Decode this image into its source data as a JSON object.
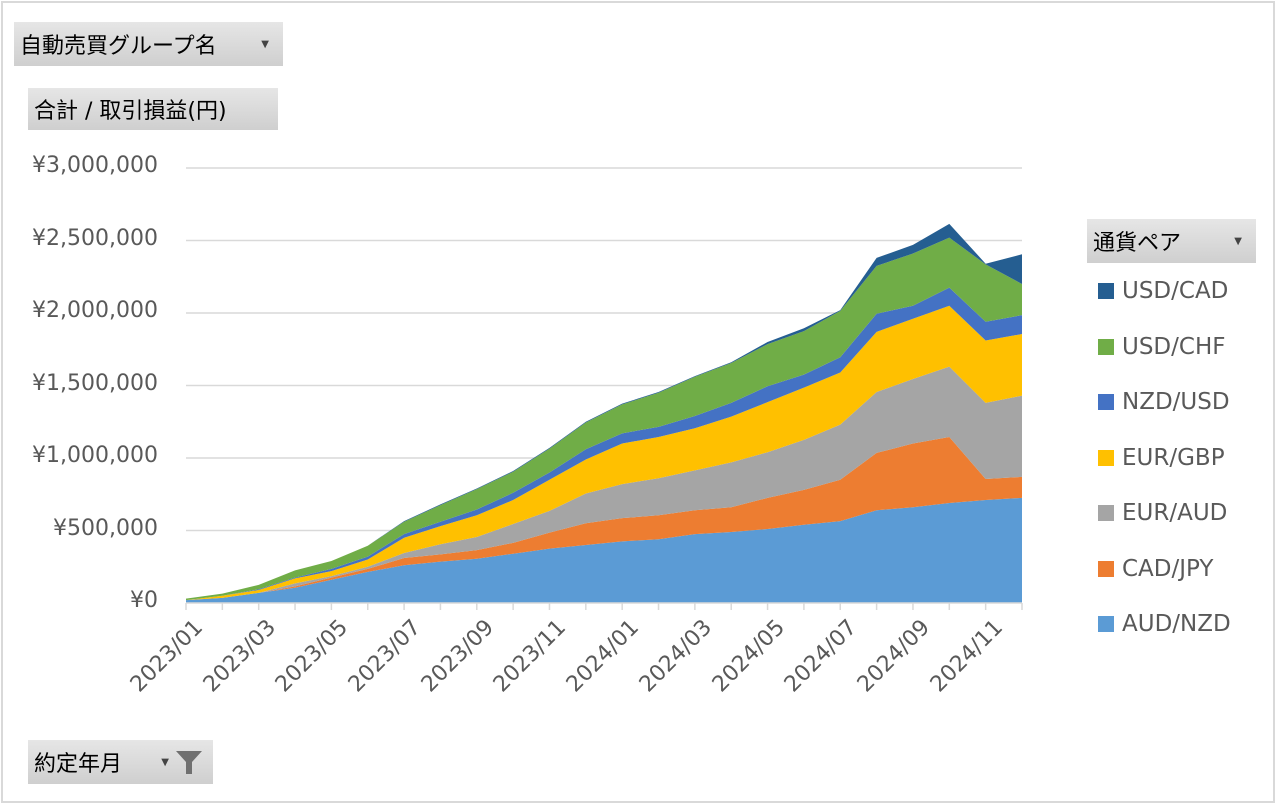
{
  "pivot": {
    "filter_group": "自動売買グループ名",
    "value_field": "合計 / 取引損益(円)",
    "axis_field": "約定年月",
    "legend_field": "通貨ペア"
  },
  "chart_data": {
    "type": "area",
    "stacked": true,
    "title": "",
    "xlabel": "",
    "ylabel": "合計 / 取引損益(円)",
    "ylim": [
      0,
      3000000
    ],
    "yticks": [
      0,
      500000,
      1000000,
      1500000,
      2000000,
      2500000,
      3000000
    ],
    "ytick_labels": [
      "¥0",
      "¥500,000",
      "¥1,000,000",
      "¥1,500,000",
      "¥2,000,000",
      "¥2,500,000",
      "¥3,000,000"
    ],
    "grid": true,
    "legend_position": "right",
    "x": [
      "2023/01",
      "2023/02",
      "2023/03",
      "2023/04",
      "2023/05",
      "2023/06",
      "2023/07",
      "2023/08",
      "2023/09",
      "2023/10",
      "2023/11",
      "2023/12",
      "2024/01",
      "2024/02",
      "2024/03",
      "2024/04",
      "2024/05",
      "2024/06",
      "2024/07",
      "2024/08",
      "2024/09",
      "2024/10",
      "2024/11",
      "2024/12"
    ],
    "xtick_labels": [
      "2023/01",
      "2023/03",
      "2023/05",
      "2023/07",
      "2023/09",
      "2023/11",
      "2024/01",
      "2024/03",
      "2024/05",
      "2024/07",
      "2024/09",
      "2024/11"
    ],
    "series": [
      {
        "name": "AUD/NZD",
        "color": "#5B9BD5",
        "values": [
          20000,
          35000,
          70000,
          105000,
          160000,
          215000,
          260000,
          285000,
          305000,
          340000,
          375000,
          400000,
          425000,
          440000,
          475000,
          490000,
          510000,
          540000,
          565000,
          640000,
          660000,
          690000,
          710000,
          725000
        ]
      },
      {
        "name": "CAD/JPY",
        "color": "#ED7D31",
        "values": [
          0,
          0,
          0,
          10000,
          15000,
          20000,
          50000,
          50000,
          60000,
          75000,
          110000,
          150000,
          160000,
          165000,
          165000,
          170000,
          215000,
          240000,
          285000,
          395000,
          440000,
          455000,
          145000,
          145000
        ]
      },
      {
        "name": "EUR/AUD",
        "color": "#A5A5A5",
        "values": [
          0,
          0,
          0,
          20000,
          10000,
          15000,
          35000,
          70000,
          90000,
          130000,
          150000,
          205000,
          235000,
          255000,
          275000,
          310000,
          315000,
          345000,
          380000,
          420000,
          445000,
          485000,
          525000,
          560000
        ]
      },
      {
        "name": "EUR/GBP",
        "color": "#FFC000",
        "values": [
          0,
          15000,
          20000,
          35000,
          35000,
          50000,
          105000,
          125000,
          150000,
          165000,
          215000,
          235000,
          280000,
          285000,
          290000,
          315000,
          345000,
          360000,
          360000,
          415000,
          415000,
          420000,
          430000,
          425000
        ]
      },
      {
        "name": "NZD/USD",
        "color": "#4472C4",
        "values": [
          0,
          0,
          5000,
          5000,
          15000,
          20000,
          25000,
          30000,
          40000,
          50000,
          50000,
          70000,
          70000,
          70000,
          85000,
          95000,
          110000,
          90000,
          105000,
          125000,
          90000,
          125000,
          130000,
          130000
        ]
      },
      {
        "name": "USD/CHF",
        "color": "#70AD47",
        "values": [
          10000,
          15000,
          30000,
          50000,
          55000,
          75000,
          85000,
          115000,
          140000,
          145000,
          165000,
          185000,
          200000,
          235000,
          270000,
          275000,
          290000,
          300000,
          320000,
          330000,
          360000,
          345000,
          395000,
          215000
        ]
      },
      {
        "name": "USD/CAD",
        "color": "#255E91",
        "values": [
          0,
          0,
          0,
          0,
          0,
          0,
          5000,
          5000,
          5000,
          5000,
          5000,
          5000,
          5000,
          5000,
          5000,
          5000,
          15000,
          20000,
          5000,
          55000,
          60000,
          95000,
          5000,
          205000
        ]
      }
    ],
    "legend_order": [
      "USD/CAD",
      "USD/CHF",
      "NZD/USD",
      "EUR/GBP",
      "EUR/AUD",
      "CAD/JPY",
      "AUD/NZD"
    ]
  }
}
